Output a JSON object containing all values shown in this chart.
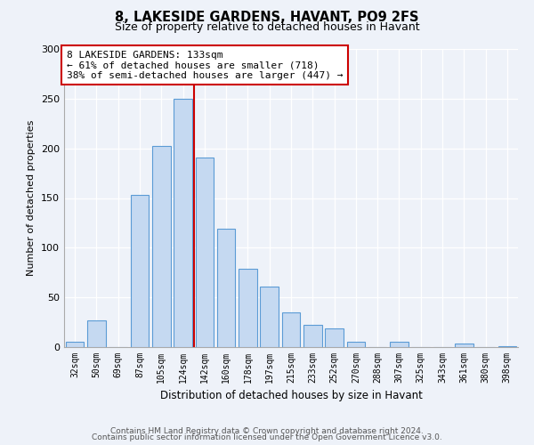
{
  "title": "8, LAKESIDE GARDENS, HAVANT, PO9 2FS",
  "subtitle": "Size of property relative to detached houses in Havant",
  "xlabel": "Distribution of detached houses by size in Havant",
  "ylabel": "Number of detached properties",
  "bar_labels": [
    "32sqm",
    "50sqm",
    "69sqm",
    "87sqm",
    "105sqm",
    "124sqm",
    "142sqm",
    "160sqm",
    "178sqm",
    "197sqm",
    "215sqm",
    "233sqm",
    "252sqm",
    "270sqm",
    "288sqm",
    "307sqm",
    "325sqm",
    "343sqm",
    "361sqm",
    "380sqm",
    "398sqm"
  ],
  "bar_values": [
    5,
    27,
    0,
    153,
    202,
    250,
    191,
    119,
    79,
    61,
    35,
    22,
    19,
    5,
    0,
    5,
    0,
    0,
    4,
    0,
    1
  ],
  "bar_color": "#c5d9f1",
  "bar_edge_color": "#5b9bd5",
  "vline_color": "#cc0000",
  "annotation_title": "8 LAKESIDE GARDENS: 133sqm",
  "annotation_line1": "← 61% of detached houses are smaller (718)",
  "annotation_line2": "38% of semi-detached houses are larger (447) →",
  "annotation_box_color": "#ffffff",
  "annotation_box_edge": "#cc0000",
  "ylim": [
    0,
    300
  ],
  "yticks": [
    0,
    50,
    100,
    150,
    200,
    250,
    300
  ],
  "footer1": "Contains HM Land Registry data © Crown copyright and database right 2024.",
  "footer2": "Contains public sector information licensed under the Open Government Licence v3.0.",
  "background_color": "#eef2f9",
  "grid_color": "#ffffff",
  "title_fontsize": 10.5,
  "subtitle_fontsize": 9
}
